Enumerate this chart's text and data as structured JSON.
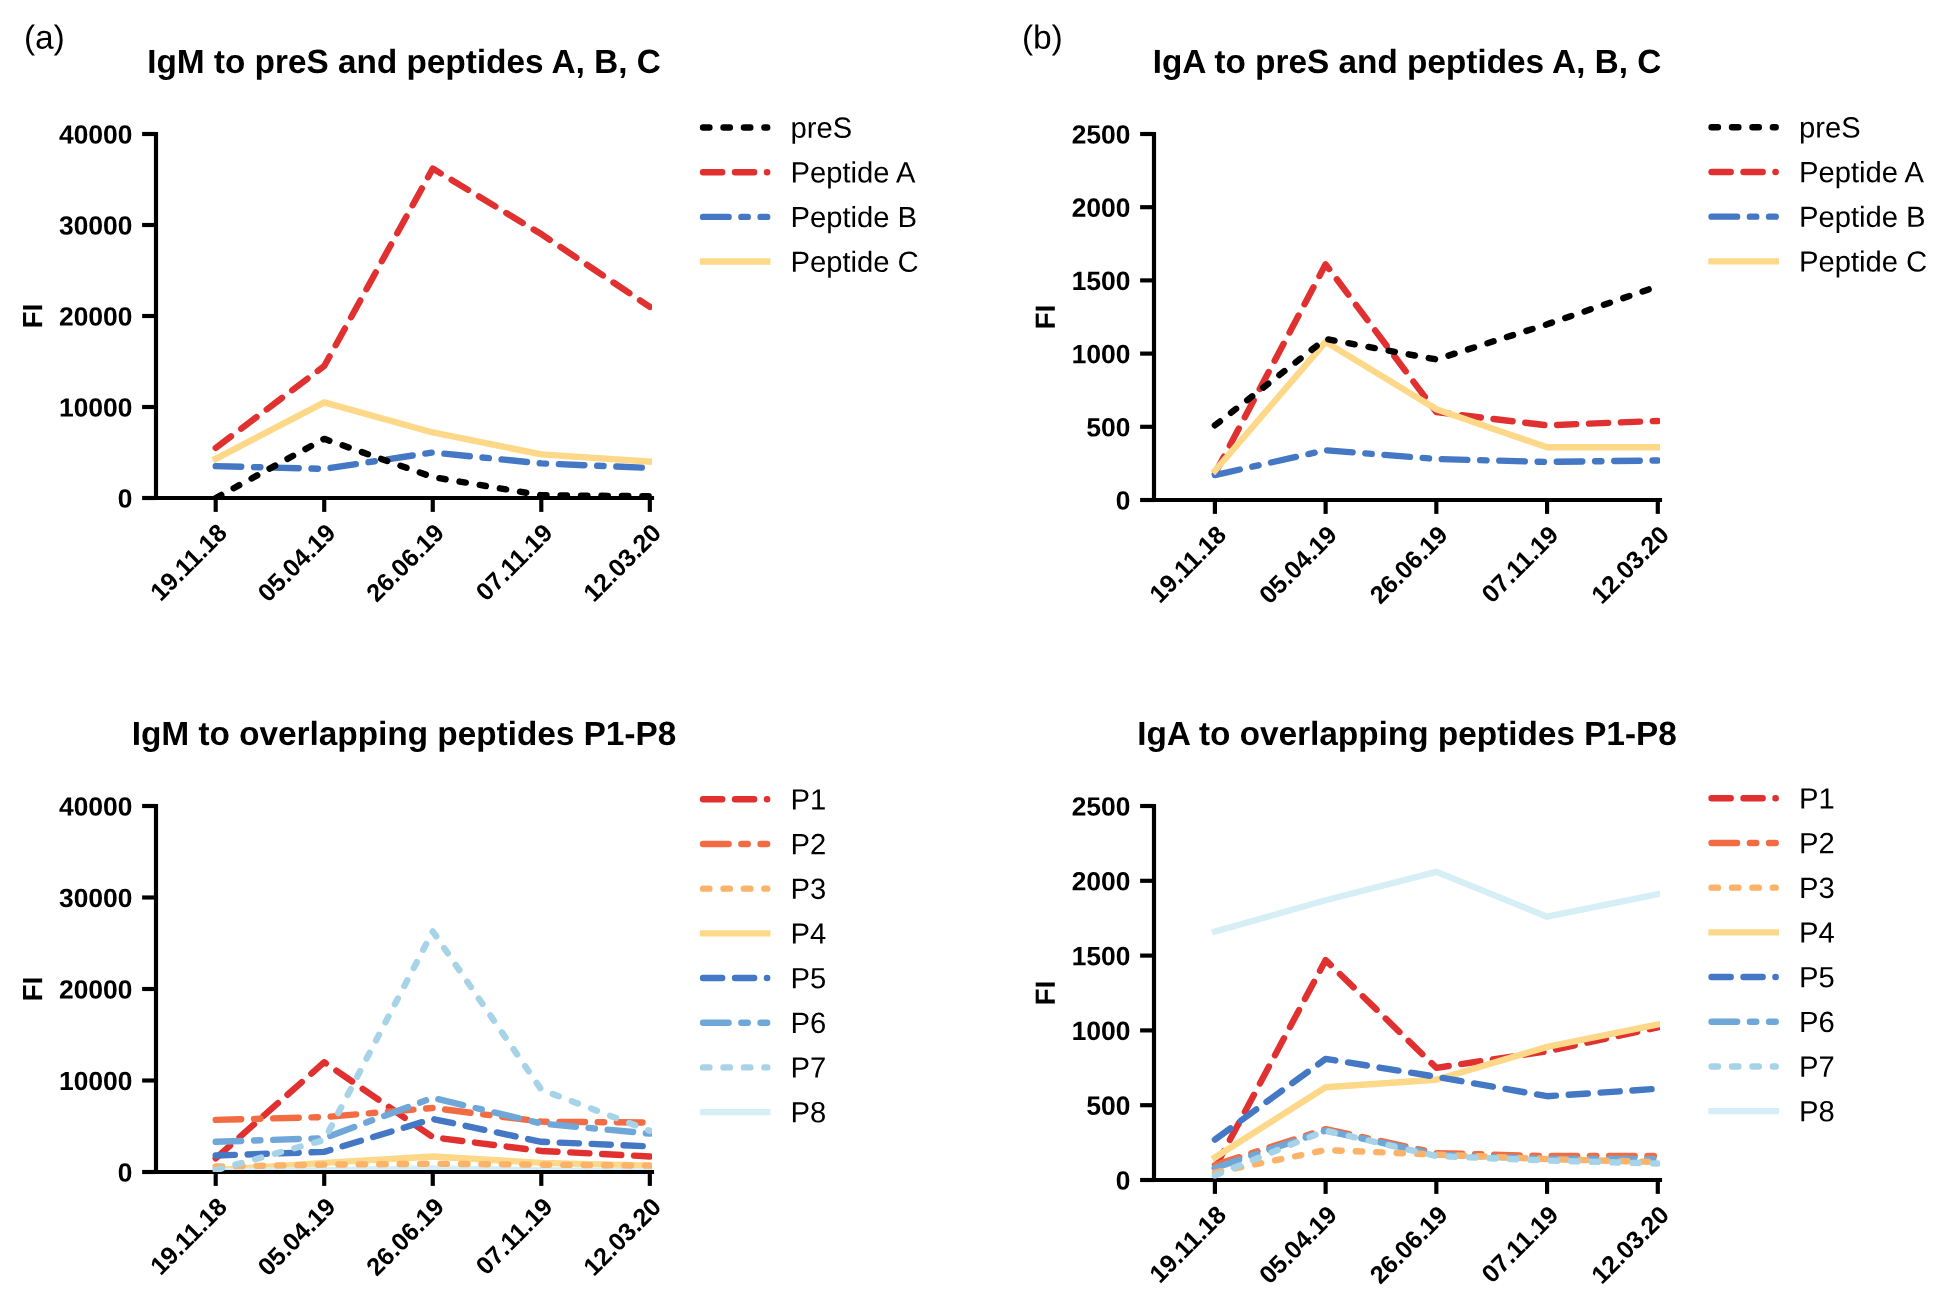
{
  "chart_data": [
    {
      "type": "line",
      "title": "IgM to preS and peptides A, B, C",
      "ylabel": "FI",
      "annotations": [
        "(a)"
      ],
      "categories": [
        "19.11.18",
        "05.04.19",
        "26.06.19",
        "07.11.19",
        "12.03.20"
      ],
      "ylim": [
        0,
        40000
      ],
      "yticks": [
        0,
        10000,
        20000,
        30000,
        40000
      ],
      "grid": false,
      "legend": "right",
      "series": [
        {
          "name": "preS",
          "color": "#000000",
          "line_style": "dotted",
          "values": [
            0,
            6500,
            2300,
            300,
            200
          ]
        },
        {
          "name": "Peptide A",
          "color": "#e03030",
          "line_style": "dashed",
          "values": [
            5500,
            14500,
            36200,
            29000,
            21000
          ]
        },
        {
          "name": "Peptide B",
          "color": "#4477c4",
          "line_style": "dashdot",
          "values": [
            3500,
            3200,
            5000,
            3800,
            3300
          ]
        },
        {
          "name": "Peptide C",
          "color": "#fdd888",
          "line_style": "solid",
          "values": [
            4300,
            10500,
            7200,
            4800,
            4000
          ]
        }
      ]
    },
    {
      "type": "line",
      "title": "IgA to preS and peptides A, B, C",
      "ylabel": "FI",
      "annotations": [
        "(b)"
      ],
      "categories": [
        "19.11.18",
        "05.04.19",
        "26.06.19",
        "07.11.19",
        "12.03.20"
      ],
      "ylim": [
        0,
        2500
      ],
      "yticks": [
        0,
        500,
        1000,
        1500,
        2000,
        2500
      ],
      "grid": false,
      "legend": "right",
      "series": [
        {
          "name": "preS",
          "color": "#000000",
          "line_style": "dotted",
          "values": [
            510,
            1100,
            960,
            1200,
            1460
          ]
        },
        {
          "name": "Peptide A",
          "color": "#e03030",
          "line_style": "dashed",
          "values": [
            180,
            1610,
            600,
            510,
            540
          ]
        },
        {
          "name": "Peptide B",
          "color": "#4477c4",
          "line_style": "dashdot",
          "values": [
            170,
            340,
            280,
            260,
            270
          ]
        },
        {
          "name": "Peptide C",
          "color": "#fdd888",
          "line_style": "solid",
          "values": [
            200,
            1080,
            620,
            360,
            360
          ]
        }
      ]
    },
    {
      "type": "line",
      "title": "IgM to overlapping peptides P1-P8",
      "ylabel": "FI",
      "categories": [
        "19.11.18",
        "05.04.19",
        "26.06.19",
        "07.11.19",
        "12.03.20"
      ],
      "ylim": [
        0,
        40000
      ],
      "yticks": [
        0,
        10000,
        20000,
        30000,
        40000
      ],
      "grid": false,
      "legend": "right",
      "series": [
        {
          "name": "P1",
          "color": "#e03030",
          "line_style": "dashed",
          "values": [
            1500,
            12000,
            3800,
            2300,
            1700
          ]
        },
        {
          "name": "P2",
          "color": "#f26b43",
          "line_style": "dashdot",
          "values": [
            5700,
            6000,
            7000,
            5500,
            5400
          ]
        },
        {
          "name": "P3",
          "color": "#fbb36a",
          "line_style": "dotted",
          "values": [
            600,
            800,
            900,
            800,
            700
          ]
        },
        {
          "name": "P4",
          "color": "#fdd888",
          "line_style": "solid",
          "values": [
            200,
            1000,
            1700,
            1000,
            700
          ]
        },
        {
          "name": "P5",
          "color": "#4477c4",
          "line_style": "dashed",
          "values": [
            1800,
            2200,
            5800,
            3300,
            2800
          ]
        },
        {
          "name": "P6",
          "color": "#6fa8d8",
          "line_style": "dashdot",
          "values": [
            3300,
            3700,
            8100,
            5300,
            4200
          ]
        },
        {
          "name": "P7",
          "color": "#a6d3e8",
          "line_style": "dotted",
          "values": [
            200,
            3500,
            26300,
            9000,
            4500
          ]
        },
        {
          "name": "P8",
          "color": "#d6eef5",
          "line_style": "solid",
          "values": [
            100,
            200,
            400,
            200,
            100
          ]
        }
      ]
    },
    {
      "type": "line",
      "title": "IgA to overlapping peptides P1-P8",
      "ylabel": "FI",
      "categories": [
        "19.11.18",
        "05.04.19",
        "26.06.19",
        "07.11.19",
        "12.03.20"
      ],
      "ylim": [
        0,
        2500
      ],
      "yticks": [
        0,
        500,
        1000,
        1500,
        2000,
        2500
      ],
      "grid": false,
      "legend": "right",
      "series": [
        {
          "name": "P1",
          "color": "#e03030",
          "line_style": "dashed",
          "values": [
            80,
            1470,
            750,
            860,
            1020
          ]
        },
        {
          "name": "P2",
          "color": "#f26b43",
          "line_style": "dashdot",
          "values": [
            100,
            340,
            180,
            160,
            160
          ]
        },
        {
          "name": "P3",
          "color": "#fbb36a",
          "line_style": "dotted",
          "values": [
            50,
            200,
            170,
            140,
            120
          ]
        },
        {
          "name": "P4",
          "color": "#fdd888",
          "line_style": "solid",
          "values": [
            150,
            620,
            670,
            890,
            1040
          ]
        },
        {
          "name": "P5",
          "color": "#4477c4",
          "line_style": "dashed",
          "values": [
            270,
            810,
            690,
            560,
            610
          ]
        },
        {
          "name": "P6",
          "color": "#6fa8d8",
          "line_style": "dashdot",
          "values": [
            80,
            330,
            170,
            140,
            140
          ]
        },
        {
          "name": "P7",
          "color": "#a6d3e8",
          "line_style": "dotted",
          "values": [
            30,
            330,
            160,
            130,
            110
          ]
        },
        {
          "name": "P8",
          "color": "#d6eef5",
          "line_style": "solid",
          "values": [
            1660,
            1870,
            2060,
            1760,
            1910
          ]
        }
      ]
    }
  ]
}
